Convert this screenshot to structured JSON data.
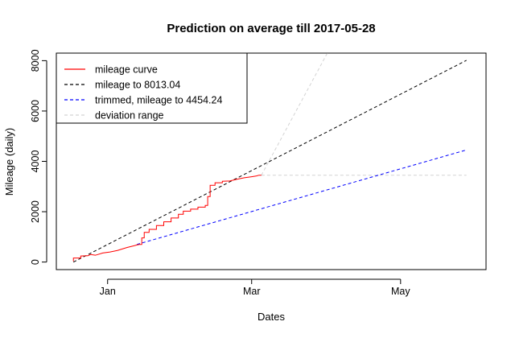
{
  "chart_data": {
    "type": "line",
    "title": "Prediction on average till 2017-05-28",
    "xlabel": "Dates",
    "ylabel": "Mileage (daily)",
    "x_range": [
      "2016-12-11",
      "2017-06-05"
    ],
    "ylim": [
      -300,
      8300
    ],
    "x_ticks": [
      {
        "label": "Jan",
        "date": "2017-01-01"
      },
      {
        "label": "Mar",
        "date": "2017-03-01"
      },
      {
        "label": "May",
        "date": "2017-05-01"
      }
    ],
    "y_ticks": [
      0,
      2000,
      4000,
      6000,
      8000
    ],
    "grid": false,
    "legend_position": "top-left",
    "colors": {
      "mileage_curve": "#ff0000",
      "projection": "#000000",
      "trimmed": "#0000ff",
      "deviation": "#d3d3d3"
    },
    "series": [
      {
        "name": "mileage curve",
        "style": "solid-step",
        "color": "#ff0000",
        "points": [
          [
            "2016-12-18",
            30
          ],
          [
            "2016-12-18",
            160
          ],
          [
            "2016-12-21",
            160
          ],
          [
            "2016-12-21",
            240
          ],
          [
            "2016-12-24",
            250
          ],
          [
            "2016-12-25",
            300
          ],
          [
            "2016-12-27",
            270
          ],
          [
            "2016-12-30",
            360
          ],
          [
            "2017-01-02",
            400
          ],
          [
            "2017-01-05",
            460
          ],
          [
            "2017-01-07",
            520
          ],
          [
            "2017-01-09",
            580
          ],
          [
            "2017-01-12",
            650
          ],
          [
            "2017-01-13",
            680
          ],
          [
            "2017-01-14",
            700
          ],
          [
            "2017-01-15",
            700
          ],
          [
            "2017-01-15",
            960
          ],
          [
            "2017-01-16",
            960
          ],
          [
            "2017-01-16",
            1180
          ],
          [
            "2017-01-18",
            1180
          ],
          [
            "2017-01-18",
            1300
          ],
          [
            "2017-01-21",
            1300
          ],
          [
            "2017-01-21",
            1450
          ],
          [
            "2017-01-24",
            1450
          ],
          [
            "2017-01-24",
            1600
          ],
          [
            "2017-01-27",
            1600
          ],
          [
            "2017-01-27",
            1750
          ],
          [
            "2017-01-30",
            1750
          ],
          [
            "2017-01-30",
            1900
          ],
          [
            "2017-02-01",
            1900
          ],
          [
            "2017-02-01",
            2020
          ],
          [
            "2017-02-04",
            2020
          ],
          [
            "2017-02-04",
            2100
          ],
          [
            "2017-02-07",
            2100
          ],
          [
            "2017-02-07",
            2180
          ],
          [
            "2017-02-10",
            2180
          ],
          [
            "2017-02-10",
            2250
          ],
          [
            "2017-02-11",
            2250
          ],
          [
            "2017-02-11",
            2600
          ],
          [
            "2017-02-12",
            2600
          ],
          [
            "2017-02-12",
            3050
          ],
          [
            "2017-02-14",
            3050
          ],
          [
            "2017-02-14",
            3150
          ],
          [
            "2017-02-17",
            3150
          ],
          [
            "2017-02-17",
            3210
          ],
          [
            "2017-02-20",
            3220
          ],
          [
            "2017-02-23",
            3290
          ],
          [
            "2017-02-26",
            3350
          ],
          [
            "2017-03-01",
            3390
          ],
          [
            "2017-03-03",
            3420
          ],
          [
            "2017-03-04",
            3450
          ],
          [
            "2017-03-05",
            3450
          ]
        ]
      },
      {
        "name": "mileage to 8013.04",
        "style": "dashed",
        "color": "#000000",
        "points": [
          [
            "2016-12-18",
            0
          ],
          [
            "2017-05-28",
            8013.04
          ]
        ]
      },
      {
        "name": "trimmed, mileage to 4454.24",
        "style": "dashed",
        "color": "#0000ff",
        "points": [
          [
            "2017-01-13",
            700
          ],
          [
            "2017-05-28",
            4454.24
          ]
        ]
      },
      {
        "name": "deviation range",
        "style": "dashed",
        "color": "#d3d3d3",
        "segments": [
          [
            [
              "2017-03-05",
              3450
            ],
            [
              "2017-04-01",
              8300
            ]
          ],
          [
            [
              "2017-03-05",
              3450
            ],
            [
              "2017-05-28",
              3450
            ]
          ]
        ]
      }
    ]
  }
}
